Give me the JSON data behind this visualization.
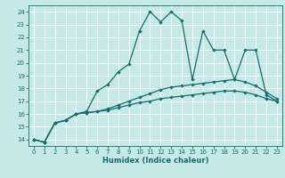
{
  "xlabel": "Humidex (Indice chaleur)",
  "bg_color": "#c5e8e8",
  "grid_color": "#ffffff",
  "line_color": "#1a6b6b",
  "xlim": [
    -0.5,
    23.5
  ],
  "ylim": [
    13.5,
    24.5
  ],
  "xticks": [
    0,
    1,
    2,
    3,
    4,
    5,
    6,
    7,
    8,
    9,
    10,
    11,
    12,
    13,
    14,
    15,
    16,
    17,
    18,
    19,
    20,
    21,
    22,
    23
  ],
  "yticks": [
    14,
    15,
    16,
    17,
    18,
    19,
    20,
    21,
    22,
    23,
    24
  ],
  "lines": [
    {
      "x": [
        0,
        1,
        2,
        3,
        4,
        5,
        6,
        7,
        8,
        9,
        10,
        11,
        12,
        13,
        14,
        15,
        16,
        17,
        18,
        19,
        20,
        21,
        22,
        23
      ],
      "y": [
        14.0,
        13.8,
        15.3,
        15.5,
        16.0,
        16.1,
        16.2,
        16.3,
        16.5,
        16.7,
        16.9,
        17.0,
        17.2,
        17.3,
        17.4,
        17.5,
        17.6,
        17.7,
        17.8,
        17.8,
        17.7,
        17.5,
        17.2,
        17.0
      ]
    },
    {
      "x": [
        0,
        1,
        2,
        3,
        4,
        5,
        6,
        7,
        8,
        9,
        10,
        11,
        12,
        13,
        14,
        15,
        16,
        17,
        18,
        19,
        20,
        21,
        22,
        23
      ],
      "y": [
        14.0,
        13.8,
        15.3,
        15.5,
        16.0,
        16.1,
        16.2,
        16.4,
        16.7,
        17.0,
        17.3,
        17.6,
        17.9,
        18.1,
        18.2,
        18.3,
        18.4,
        18.5,
        18.6,
        18.7,
        18.5,
        18.2,
        17.7,
        17.2
      ]
    },
    {
      "x": [
        0,
        1,
        2,
        3,
        4,
        5,
        6,
        7,
        8,
        9,
        10,
        11,
        12,
        13,
        14,
        15,
        16,
        17,
        18,
        19,
        20,
        21,
        22,
        23
      ],
      "y": [
        14.0,
        13.8,
        15.3,
        15.5,
        16.0,
        16.2,
        17.8,
        18.3,
        19.3,
        19.9,
        22.5,
        24.0,
        23.2,
        24.0,
        23.3,
        18.7,
        22.5,
        21.0,
        21.0,
        18.7,
        21.0,
        21.0,
        17.5,
        17.0
      ]
    }
  ]
}
